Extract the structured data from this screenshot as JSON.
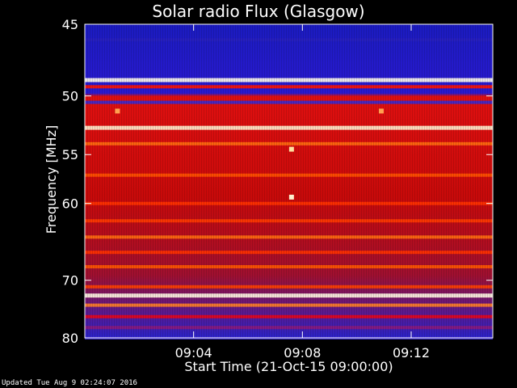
{
  "chart_data": {
    "type": "heatmap",
    "title": "Solar radio Flux (Glasgow)",
    "xlabel": "Start Time (21-Oct-15 09:00:00)",
    "ylabel": "Frequency [MHz]",
    "x_range_minutes": [
      0,
      15
    ],
    "x_ticks": [
      {
        "value": 4,
        "label": "09:04"
      },
      {
        "value": 8,
        "label": "09:08"
      },
      {
        "value": 12,
        "label": "09:12"
      }
    ],
    "y_range_mhz": [
      45,
      80
    ],
    "y_scale": "reciprocal",
    "y_ticks": [
      45,
      50,
      55,
      60,
      70,
      80
    ],
    "colormap": [
      "#1a1ab4",
      "#3a2ad0",
      "#ff0000",
      "#ff6000",
      "#ffe0a0",
      "#ffffff"
    ],
    "bands": [
      {
        "freq": 46.0,
        "intensity": 0.08
      },
      {
        "freq": 48.8,
        "intensity": 0.98
      },
      {
        "freq": 49.3,
        "intensity": 0.5
      },
      {
        "freq": 50.5,
        "intensity": 0.2
      },
      {
        "freq": 52.6,
        "intensity": 0.95
      },
      {
        "freq": 54.0,
        "intensity": 0.72
      },
      {
        "freq": 57.0,
        "intensity": 0.66
      },
      {
        "freq": 60.0,
        "intensity": 0.58
      },
      {
        "freq": 62.0,
        "intensity": 0.6
      },
      {
        "freq": 64.0,
        "intensity": 0.72
      },
      {
        "freq": 66.0,
        "intensity": 0.58
      },
      {
        "freq": 68.0,
        "intensity": 0.68
      },
      {
        "freq": 71.0,
        "intensity": 0.62
      },
      {
        "freq": 72.4,
        "intensity": 0.97
      },
      {
        "freq": 74.0,
        "intensity": 0.75
      },
      {
        "freq": 76.0,
        "intensity": 0.42
      },
      {
        "freq": 78.0,
        "intensity": 0.3
      },
      {
        "freq": 80.0,
        "intensity": 0.2
      }
    ],
    "events": [
      {
        "time_min": 7.6,
        "freq": 54.5,
        "intensity": 0.9
      },
      {
        "time_min": 7.6,
        "freq": 59.3,
        "intensity": 0.95
      },
      {
        "time_min": 1.2,
        "freq": 51.2,
        "intensity": 0.8
      },
      {
        "time_min": 10.9,
        "freq": 51.2,
        "intensity": 0.8
      }
    ]
  },
  "footer": "Updated Tue Aug  9 02:24:07 2016"
}
